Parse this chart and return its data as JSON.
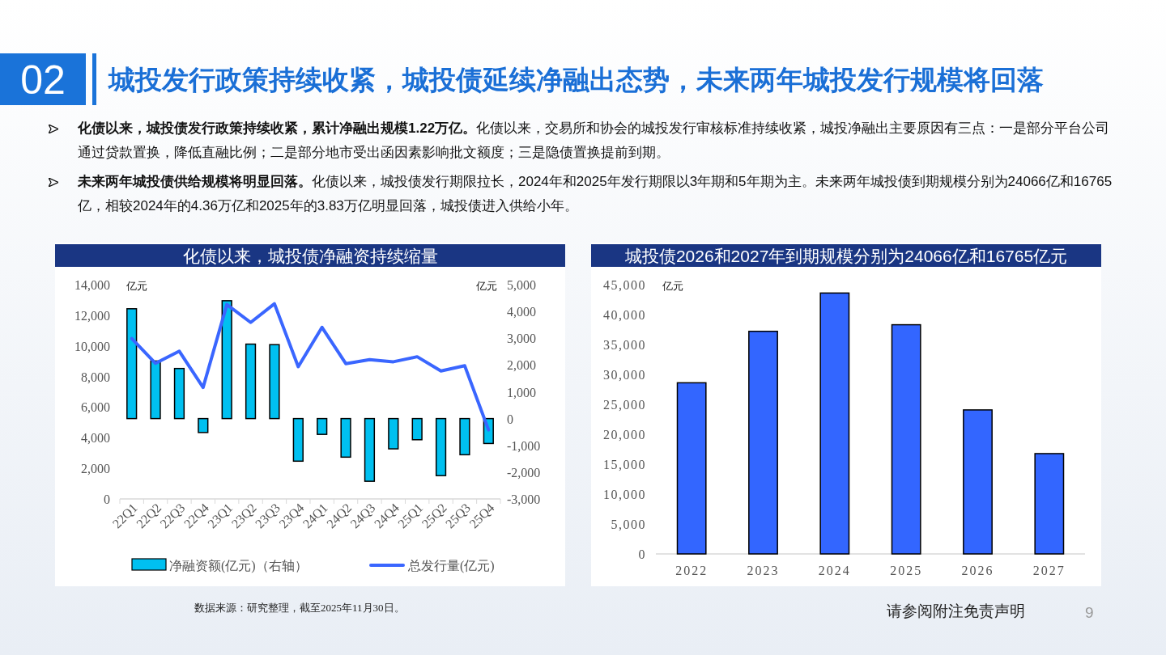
{
  "chart_data": [
    {
      "type": "other",
      "title": "城投发行政策持续收紧，城投债延续净融出态势，未来两年城投发行规模将回落",
      "annotations": [
        "02",
        "化债以来，城投债发行政策持续收紧，累计净融出规模1.22万亿。化债以来，交易所和协会的城投发行审核标准持续收紧，城投净融出主要原因有三点：一是部分平台公司通过贷款置换，降低直融比例；二是部分地市受出函因素影响批文额度；三是隐债置换提前到期。",
        "未来两年城投债供给规模将明显回落。化债以来，城投债发行期限拉长，2024年和2025年发行期限以3年期和5年期为主。未来两年城投债到期规模分别为24066亿和16765亿，相较2024年的4.36万亿和2025年的3.83万亿明显回落，城投债进入供给小年。",
        "数据来源：研究整理，截至2025年11月30日。",
        "请参阅附注免责声明",
        "9"
      ]
    },
    {
      "type": "bar",
      "title": "化债以来，城投债净融资持续缩量",
      "ylabel": "亿元",
      "y2label": "亿元",
      "categories": [
        "22Q1",
        "22Q2",
        "22Q3",
        "22Q4",
        "23Q1",
        "23Q2",
        "23Q3",
        "23Q4",
        "24Q1",
        "24Q2",
        "24Q3",
        "24Q4",
        "25Q1",
        "25Q2",
        "25Q3",
        "25Q4"
      ],
      "series": [
        {
          "name": "净融资额(亿元)（右轴）",
          "type": "bar",
          "axis": "y2",
          "color": "#00c0f0",
          "values": [
            4100,
            2150,
            1870,
            -520,
            4400,
            2780,
            2760,
            -1590,
            -590,
            -1440,
            -2340,
            -1130,
            -790,
            -2130,
            -1350,
            -930
          ]
        },
        {
          "name": "总发行量(亿元)",
          "type": "line",
          "color": "#3a66ff",
          "values": [
            10480,
            8860,
            9650,
            7280,
            12700,
            11530,
            12750,
            8640,
            11210,
            8840,
            9100,
            8960,
            9290,
            8360,
            8700,
            4510
          ]
        }
      ],
      "ylim": [
        0,
        14000
      ],
      "yticks": [
        0,
        {
          "value": 2000,
          "label": "2,000"
        },
        {
          "value": 4000,
          "label": "4,000"
        },
        {
          "value": 6000,
          "label": "6,000"
        },
        {
          "value": 8000,
          "label": "8,000"
        },
        {
          "value": 10000,
          "label": "10,000"
        },
        {
          "value": 12000,
          "label": "12,000"
        },
        {
          "value": 14000,
          "label": "14,000"
        }
      ],
      "y2lim": [
        -3000,
        5000
      ],
      "y2ticks": [
        {
          "value": -3000,
          "label": "-3,000"
        },
        {
          "value": -2000,
          "label": "-2,000"
        },
        {
          "value": -1000,
          "label": "-1,000"
        },
        0,
        {
          "value": 1000,
          "label": "1,000"
        },
        {
          "value": 2000,
          "label": "2,000"
        },
        {
          "value": 3000,
          "label": "3,000"
        },
        {
          "value": 4000,
          "label": "4,000"
        },
        {
          "value": 5000,
          "label": "5,000"
        }
      ],
      "legend": "bottom"
    },
    {
      "type": "bar",
      "title": "城投债2026和2027年到期规模分别为24066亿和16765亿元",
      "ylabel": "亿元",
      "categories": [
        "2022",
        "2023",
        "2024",
        "2025",
        "2026",
        "2027"
      ],
      "values": [
        28600,
        37200,
        43600,
        38300,
        24066,
        16765
      ],
      "color": "#3366ff",
      "ylim": [
        0,
        45000
      ],
      "yticks": [
        0,
        {
          "value": 5000,
          "label": "5,000"
        },
        {
          "value": 10000,
          "label": "10,000"
        },
        {
          "value": 15000,
          "label": "15,000"
        },
        {
          "value": 20000,
          "label": "20,000"
        },
        {
          "value": 25000,
          "label": "25,000"
        },
        {
          "value": 30000,
          "label": "30,000"
        },
        {
          "value": 35000,
          "label": "35,000"
        },
        {
          "value": 40000,
          "label": "40,000"
        },
        {
          "value": 45000,
          "label": "45,000"
        }
      ]
    }
  ]
}
